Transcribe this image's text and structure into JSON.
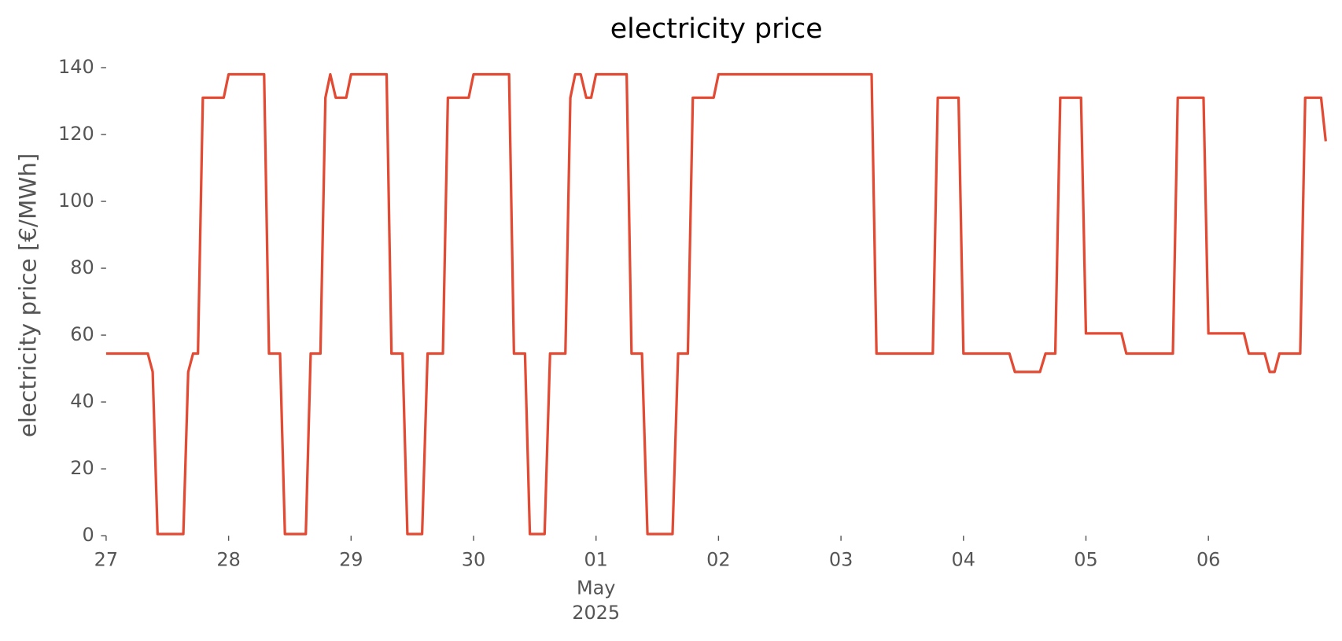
{
  "chart_data": {
    "type": "line",
    "title": "electricity price",
    "y_label": "electricity price [€/MWh]",
    "xlim": [
      0,
      9.958
    ],
    "ylim": [
      0,
      140
    ],
    "yticks": [
      0,
      20,
      40,
      60,
      80,
      100,
      120,
      140
    ],
    "xticks": [
      {
        "value": 0,
        "label": "27"
      },
      {
        "value": 1,
        "label": "28"
      },
      {
        "value": 2,
        "label": "29"
      },
      {
        "value": 3,
        "label": "30"
      },
      {
        "value": 4,
        "label": "01"
      },
      {
        "value": 5,
        "label": "02"
      },
      {
        "value": 6,
        "label": "03"
      },
      {
        "value": 7,
        "label": "04"
      },
      {
        "value": 8,
        "label": "05"
      },
      {
        "value": 9,
        "label": "06"
      }
    ],
    "xtick_sublabel": [
      "May",
      "2025"
    ],
    "grid": false,
    "series": [
      {
        "name": "electricity price",
        "color": "#e24a33",
        "x": [
          0,
          0.34,
          0.38,
          0.42,
          0.63,
          0.67,
          0.71,
          0.75,
          0.79,
          0.96,
          1.0,
          1.29,
          1.33,
          1.42,
          1.46,
          1.63,
          1.67,
          1.75,
          1.79,
          1.83,
          1.875,
          1.96,
          2.0,
          2.29,
          2.33,
          2.42,
          2.46,
          2.58,
          2.625,
          2.75,
          2.79,
          2.96,
          3.0,
          3.29,
          3.33,
          3.42,
          3.46,
          3.58,
          3.625,
          3.75,
          3.79,
          3.83,
          3.875,
          3.92,
          3.96,
          4.0,
          4.25,
          4.29,
          4.375,
          4.42,
          4.625,
          4.67,
          4.75,
          4.79,
          4.96,
          5.0,
          6.25,
          6.29,
          6.75,
          6.79,
          6.96,
          7.0,
          7.375,
          7.42,
          7.625,
          7.67,
          7.75,
          7.79,
          7.96,
          8.0,
          8.29,
          8.33,
          8.71,
          8.75,
          8.96,
          9.0,
          9.29,
          9.33,
          9.46,
          9.5,
          9.54,
          9.58,
          9.75,
          9.79,
          9.92,
          9.958
        ],
        "values": [
          54.5,
          54.5,
          49,
          0.5,
          0.5,
          49,
          54.5,
          54.5,
          131,
          131,
          138,
          138,
          54.5,
          54.5,
          0.5,
          0.5,
          54.5,
          54.5,
          131,
          138,
          131,
          131,
          138,
          138,
          54.5,
          54.5,
          0.5,
          0.5,
          54.5,
          54.5,
          131,
          131,
          138,
          138,
          54.5,
          54.5,
          0.5,
          0.5,
          54.5,
          54.5,
          131,
          138,
          138,
          131,
          131,
          138,
          138,
          54.5,
          54.5,
          0.5,
          0.5,
          54.5,
          54.5,
          131,
          131,
          138,
          138,
          54.5,
          54.5,
          131,
          131,
          54.5,
          54.5,
          49,
          49,
          54.5,
          54.5,
          131,
          131,
          60.5,
          60.5,
          54.5,
          54.5,
          131,
          131,
          60.5,
          60.5,
          54.5,
          54.5,
          49,
          49,
          54.5,
          54.5,
          131,
          131,
          118
        ]
      }
    ]
  }
}
